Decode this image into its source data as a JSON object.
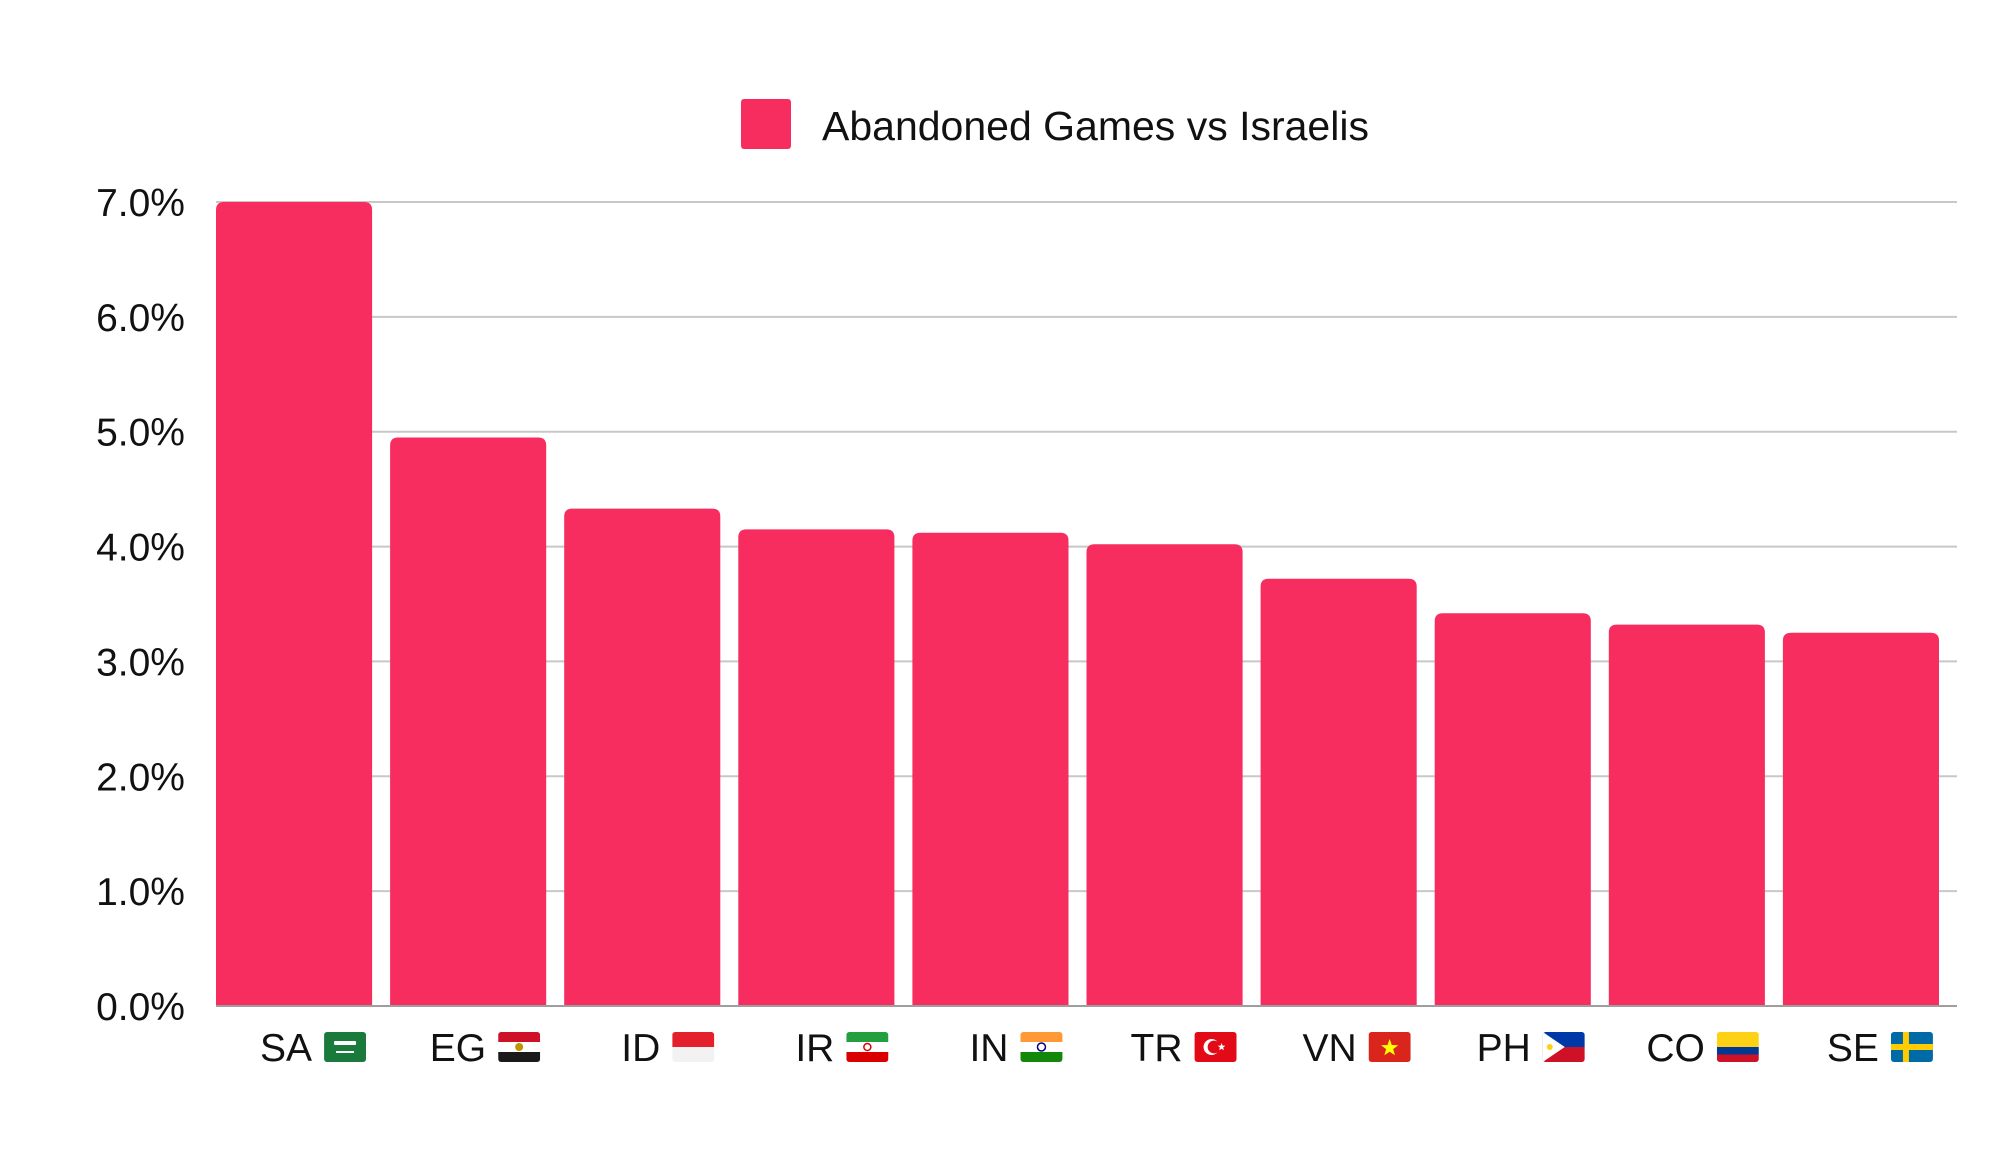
{
  "chart_data": {
    "type": "bar",
    "categories": [
      "SA",
      "EG",
      "ID",
      "IR",
      "IN",
      "TR",
      "VN",
      "PH",
      "CO",
      "SE"
    ],
    "flags": [
      "flag-sa-icon",
      "flag-eg-icon",
      "flag-id-icon",
      "flag-ir-icon",
      "flag-in-icon",
      "flag-tr-icon",
      "flag-vn-icon",
      "flag-ph-icon",
      "flag-co-icon",
      "flag-se-icon"
    ],
    "series": [
      {
        "name": "Abandoned Games vs Israelis",
        "color": "#F72C5F",
        "values": [
          7.0,
          4.95,
          4.33,
          4.15,
          4.12,
          4.02,
          3.72,
          3.42,
          3.32,
          3.25
        ]
      }
    ],
    "yticks": [
      "0.0%",
      "1.0%",
      "2.0%",
      "3.0%",
      "4.0%",
      "5.0%",
      "6.0%",
      "7.0%"
    ],
    "ylim": [
      0,
      7
    ],
    "grid": true,
    "legend_position": "top-center",
    "xlabel": "",
    "ylabel": "",
    "title": ""
  }
}
